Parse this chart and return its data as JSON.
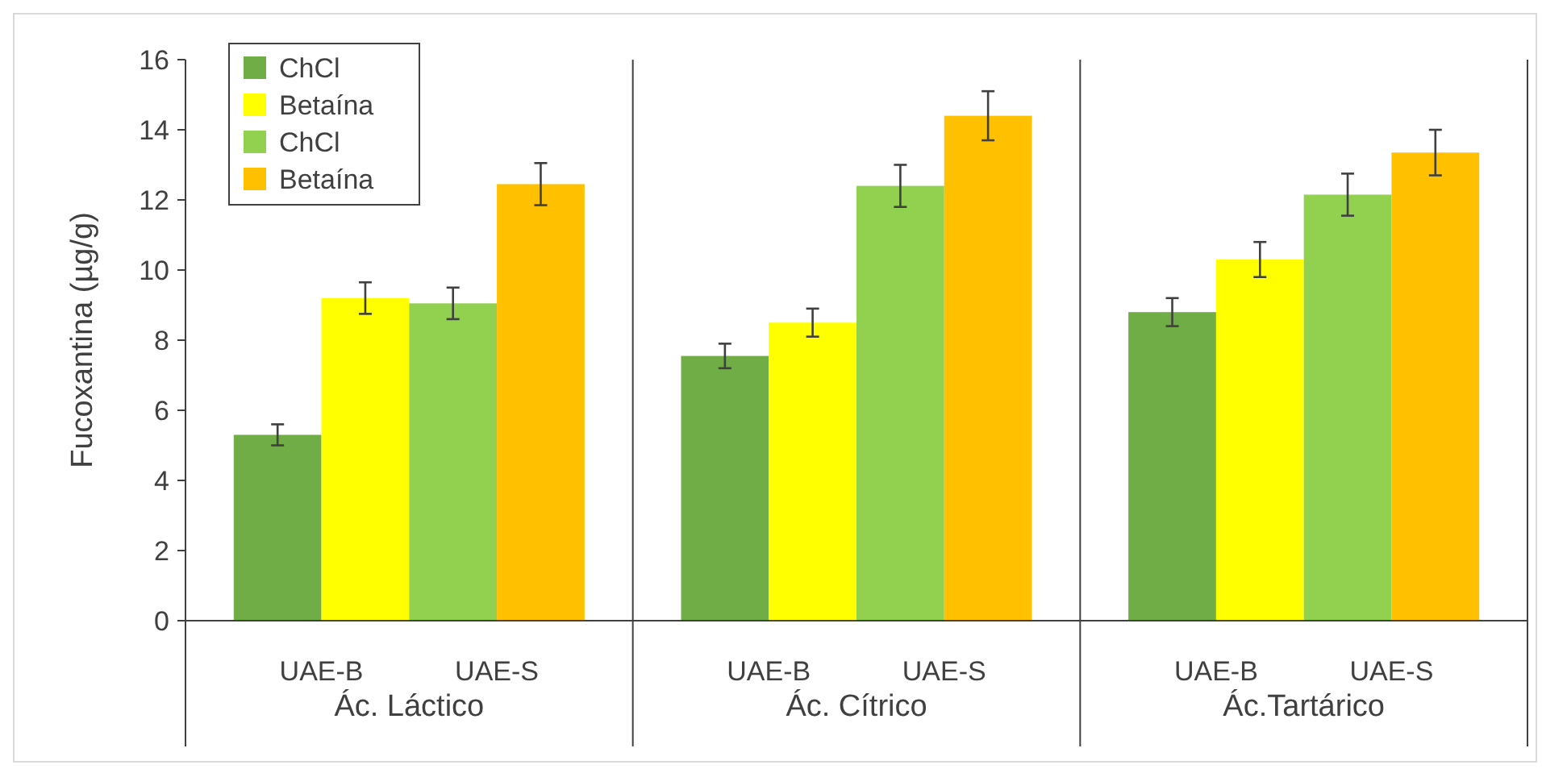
{
  "chart_data": {
    "type": "bar",
    "ylabel": "Fucoxantina (µg/g)",
    "categories": [
      "Ác. Láctico",
      "Ác. Cítrico",
      "Ác.Tartárico"
    ],
    "series": [
      {
        "name": "ChCl",
        "color": "#70ad47",
        "values": [
          5.3,
          7.55,
          8.8
        ],
        "errors": [
          0.3,
          0.35,
          0.4
        ]
      },
      {
        "name": "Betaína",
        "color": "#ffff00",
        "values": [
          9.2,
          8.5,
          10.3
        ],
        "errors": [
          0.45,
          0.4,
          0.5
        ]
      },
      {
        "name": "ChCl",
        "color": "#92d050",
        "values": [
          9.05,
          12.4,
          12.15
        ],
        "errors": [
          0.45,
          0.6,
          0.6
        ]
      },
      {
        "name": "Betaína",
        "color": "#ffc000",
        "values": [
          12.45,
          14.4,
          13.35
        ],
        "errors": [
          0.6,
          0.7,
          0.65
        ]
      }
    ],
    "annotations": [
      "UAE-B",
      "UAE-S"
    ],
    "ylim": [
      0,
      16
    ],
    "yticks": [
      0,
      2,
      4,
      6,
      8,
      10,
      12,
      14,
      16
    ],
    "grid": false,
    "legend": "top left"
  }
}
